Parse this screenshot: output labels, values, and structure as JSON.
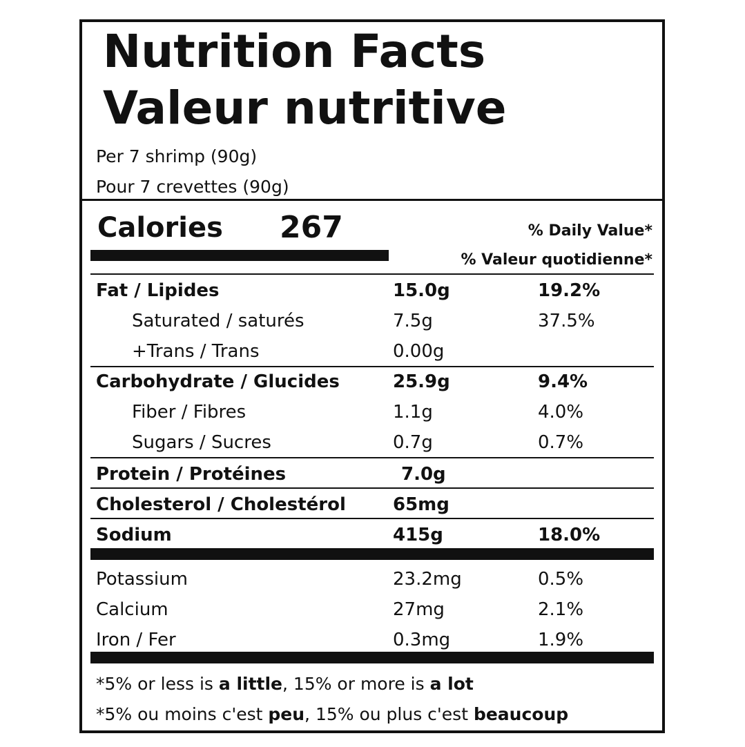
{
  "title": [
    "Nutrition Facts",
    "Valeur nutritive"
  ],
  "serving": [
    "Per 7 shrimp (90g)",
    "Pour 7 crevettes (90g)"
  ],
  "calories": {
    "label": "Calories",
    "value": 267
  },
  "dv_header": [
    "% Daily Value*",
    "% Valeur quotidienne*"
  ],
  "rows": [
    {
      "name": "Fat / Lipides",
      "amount": "15.0g",
      "dv": "19.2%"
    },
    {
      "name": "Saturated / saturés",
      "amount": "7.5g",
      "dv": "37.5%"
    },
    {
      "name": "+Trans / Trans",
      "amount": "0.00g"
    },
    {
      "name": "Carbohydrate / Glucides",
      "amount": "25.9g",
      "dv": "9.4%"
    },
    {
      "name": "Fiber / Fibres",
      "amount": "1.1g",
      "dv": "4.0%"
    },
    {
      "name": "Sugars / Sucres",
      "amount": "0.7g",
      "dv": "0.7%"
    },
    {
      "name": "Protein / Protéines",
      "amount": "7.0g"
    },
    {
      "name": "Cholesterol / Cholestérol",
      "amount": "65mg"
    },
    {
      "name": "Sodium",
      "amount": "415g",
      "dv": "18.0%"
    },
    {
      "name": "Potassium",
      "amount": "23.2mg",
      "dv": "0.5%"
    },
    {
      "name": "Calcium",
      "amount": "27mg",
      "dv": "2.1%"
    },
    {
      "name": "Iron / Fer",
      "amount": "0.3mg",
      "dv": "1.9%"
    }
  ],
  "footnote": [
    [
      "*5% or less is ",
      "a little",
      ", 15% or more is ",
      "a lot"
    ],
    [
      "*5% ou moins c'est ",
      "peu",
      ", 15% ou plus c'est ",
      "beaucoup"
    ]
  ]
}
